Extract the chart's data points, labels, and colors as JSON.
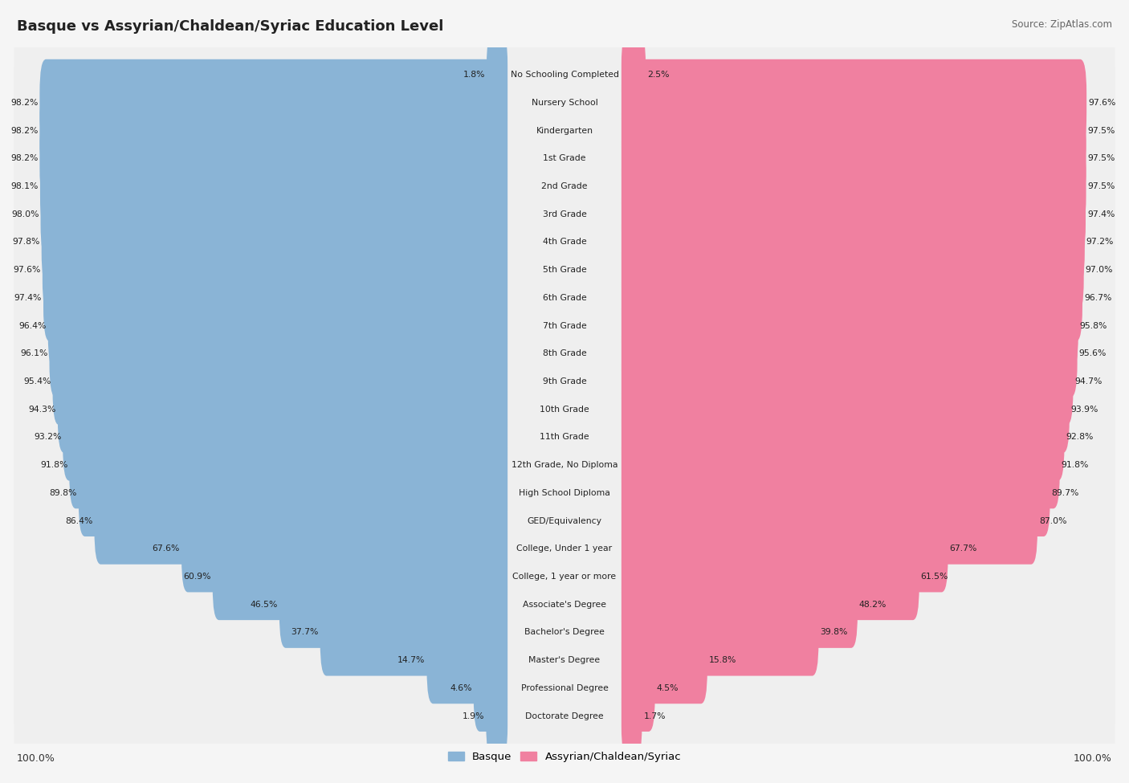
{
  "title": "BASQUE VS ASSYRIAN/CHALDEAN/SYRIAC EDUCATION LEVEL",
  "source": "Source: ZipAtlas.com",
  "categories": [
    "No Schooling Completed",
    "Nursery School",
    "Kindergarten",
    "1st Grade",
    "2nd Grade",
    "3rd Grade",
    "4th Grade",
    "5th Grade",
    "6th Grade",
    "7th Grade",
    "8th Grade",
    "9th Grade",
    "10th Grade",
    "11th Grade",
    "12th Grade, No Diploma",
    "High School Diploma",
    "GED/Equivalency",
    "College, Under 1 year",
    "College, 1 year or more",
    "Associate's Degree",
    "Bachelor's Degree",
    "Master's Degree",
    "Professional Degree",
    "Doctorate Degree"
  ],
  "basque": [
    1.8,
    98.2,
    98.2,
    98.2,
    98.1,
    98.0,
    97.8,
    97.6,
    97.4,
    96.4,
    96.1,
    95.4,
    94.3,
    93.2,
    91.8,
    89.8,
    86.4,
    67.6,
    60.9,
    46.5,
    37.7,
    14.7,
    4.6,
    1.9
  ],
  "assyrian": [
    2.5,
    97.6,
    97.5,
    97.5,
    97.5,
    97.4,
    97.2,
    97.0,
    96.7,
    95.8,
    95.6,
    94.7,
    93.9,
    92.8,
    91.8,
    89.7,
    87.0,
    67.7,
    61.5,
    48.2,
    39.8,
    15.8,
    4.5,
    1.7
  ],
  "basque_color": "#8ab4d6",
  "assyrian_color": "#f080a0",
  "row_bg_color": "#efefef",
  "outer_bg_color": "#f5f5f5",
  "legend_basque": "Basque",
  "legend_assyrian": "Assyrian/Chaldean/Syriac",
  "bottom_left_label": "100.0%",
  "bottom_right_label": "100.0%",
  "title_fontsize": 13,
  "source_fontsize": 8.5,
  "label_fontsize": 7.8,
  "cat_fontsize": 7.8
}
